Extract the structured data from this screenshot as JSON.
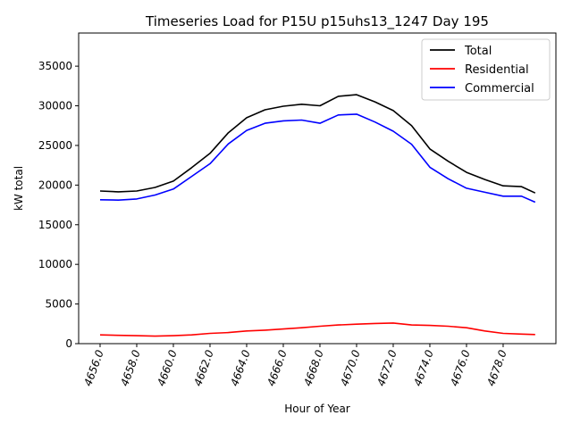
{
  "chart_data": {
    "type": "line",
    "title": "Timeseries Load for P15U p15uhs13_1247  Day 195",
    "xlabel": "Hour of Year",
    "ylabel": "kW total",
    "xlim": [
      4654.83,
      4680.88
    ],
    "ylim": [
      0,
      39180
    ],
    "grid": false,
    "legend_position": "top-right",
    "x_ticks": [
      4656,
      4658,
      4660,
      4662,
      4664,
      4666,
      4668,
      4670,
      4672,
      4674,
      4676,
      4678
    ],
    "x_tick_labels": [
      "4656.0",
      "4658.0",
      "4660.0",
      "4662.0",
      "4664.0",
      "4666.0",
      "4668.0",
      "4670.0",
      "4672.0",
      "4674.0",
      "4676.0",
      "4678.0"
    ],
    "y_ticks": [
      0,
      5000,
      10000,
      15000,
      20000,
      25000,
      30000,
      35000
    ],
    "y_tick_labels": [
      "0",
      "5000",
      "10000",
      "15000",
      "20000",
      "25000",
      "30000",
      "35000"
    ],
    "x": [
      4656,
      4657,
      4658,
      4659,
      4660,
      4661,
      4662,
      4663,
      4664,
      4665,
      4666,
      4667,
      4668,
      4669,
      4670,
      4671,
      4672,
      4673,
      4674,
      4675,
      4676,
      4677,
      4678,
      4679,
      4679.75
    ],
    "series": [
      {
        "name": "Total",
        "color": "#000000",
        "values": [
          19250,
          19150,
          19250,
          19700,
          20500,
          22200,
          24000,
          26600,
          28500,
          29500,
          29950,
          30200,
          30000,
          31200,
          31400,
          30500,
          29400,
          27500,
          24550,
          23000,
          21600,
          20700,
          19900,
          19800,
          19000
        ]
      },
      {
        "name": "Residential",
        "color": "#ff0000",
        "values": [
          1100,
          1050,
          1000,
          950,
          1000,
          1100,
          1300,
          1400,
          1600,
          1700,
          1850,
          2000,
          2200,
          2350,
          2450,
          2550,
          2600,
          2350,
          2300,
          2200,
          2000,
          1600,
          1300,
          1200,
          1150
        ]
      },
      {
        "name": "Commercial",
        "color": "#0000ff",
        "values": [
          18150,
          18100,
          18250,
          18750,
          19500,
          21100,
          22700,
          25200,
          26900,
          27800,
          28100,
          28200,
          27800,
          28850,
          28950,
          27950,
          26800,
          25150,
          22250,
          20800,
          19600,
          19100,
          18600,
          18600,
          17850
        ]
      }
    ]
  }
}
